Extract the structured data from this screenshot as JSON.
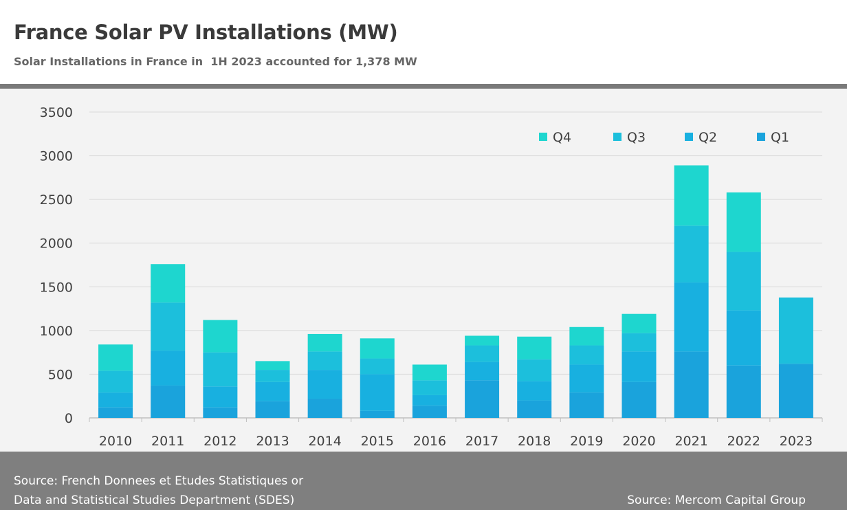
{
  "header": {
    "title": "France Solar PV Installations (MW)",
    "subtitle": "Solar Installations in France in  1H 2023 accounted for 1,378 MW"
  },
  "footer": {
    "source_left_line1": "Source: French Donnees et Etudes Statistiques or",
    "source_left_line2": "Data and Statistical Studies Department (SDES)",
    "source_right": "Source: Mercom Capital Group"
  },
  "colors": {
    "Q1": "#1aa3dc",
    "Q2": "#18b0e0",
    "Q3": "#1cbfdc",
    "Q4": "#1ed6cf",
    "grid": "#d9d9d9",
    "axis": "#bfbfbf"
  },
  "chart_data": {
    "type": "bar",
    "stacked": true,
    "title": "France Solar PV Installations (MW)",
    "subtitle": "Solar Installations in France in  1H 2023 accounted for 1,378 MW",
    "categories": [
      "2010",
      "2011",
      "2012",
      "2013",
      "2014",
      "2015",
      "2016",
      "2017",
      "2018",
      "2019",
      "2020",
      "2021",
      "2022",
      "2023"
    ],
    "series": [
      {
        "name": "Q1",
        "values": [
          120,
          370,
          120,
          190,
          220,
          80,
          140,
          430,
          200,
          290,
          410,
          760,
          600,
          620
        ]
      },
      {
        "name": "Q2",
        "values": [
          170,
          400,
          240,
          220,
          330,
          420,
          120,
          210,
          220,
          320,
          350,
          790,
          630,
          0
        ]
      },
      {
        "name": "Q3",
        "values": [
          250,
          550,
          390,
          140,
          210,
          180,
          170,
          190,
          250,
          220,
          210,
          650,
          670,
          758
        ]
      },
      {
        "name": "Q4",
        "values": [
          300,
          440,
          370,
          100,
          200,
          230,
          180,
          110,
          260,
          210,
          220,
          690,
          680,
          0
        ]
      }
    ],
    "ylim": [
      0,
      3500
    ],
    "yticks": [
      0,
      500,
      1000,
      1500,
      2000,
      2500,
      3000,
      3500
    ],
    "grid": true,
    "legend": {
      "position": "top-right",
      "order": [
        "Q4",
        "Q3",
        "Q2",
        "Q1"
      ]
    }
  }
}
